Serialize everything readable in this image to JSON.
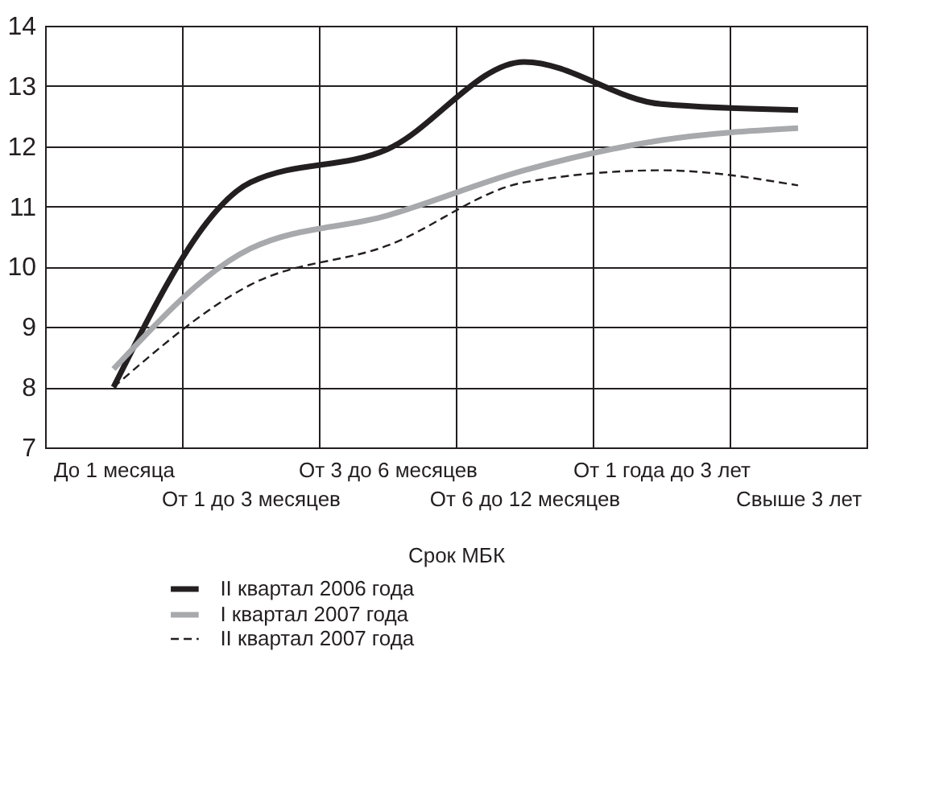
{
  "chart_data": {
    "type": "line",
    "xlabel": "Срок МБК",
    "categories": [
      "До 1 месяца",
      "От 1 до 3 месяцев",
      "От 3 до 6 месяцев",
      "От 6 до 12 месяцев",
      "От 1 года до 3 лет",
      "Свыше 3 лет"
    ],
    "series": [
      {
        "name": "II квартал 2006 года",
        "color": "#231f20",
        "line_style": "solid",
        "values": [
          8.0,
          11.4,
          11.95,
          13.4,
          12.7,
          12.6
        ]
      },
      {
        "name": "I квартал 2007 года",
        "color": "#a7a9ac",
        "line_style": "solid",
        "values": [
          8.3,
          10.3,
          10.85,
          11.6,
          12.1,
          12.3
        ]
      },
      {
        "name": "II квартал 2007 года",
        "color": "#231f20",
        "line_style": "dashed",
        "values": [
          8.0,
          9.7,
          10.35,
          11.4,
          11.6,
          11.35
        ]
      }
    ],
    "ylim": [
      7,
      14
    ],
    "yticks": [
      7,
      8,
      9,
      10,
      11,
      12,
      13,
      14
    ],
    "grid": true,
    "legend": "bottom",
    "marker": "none"
  }
}
